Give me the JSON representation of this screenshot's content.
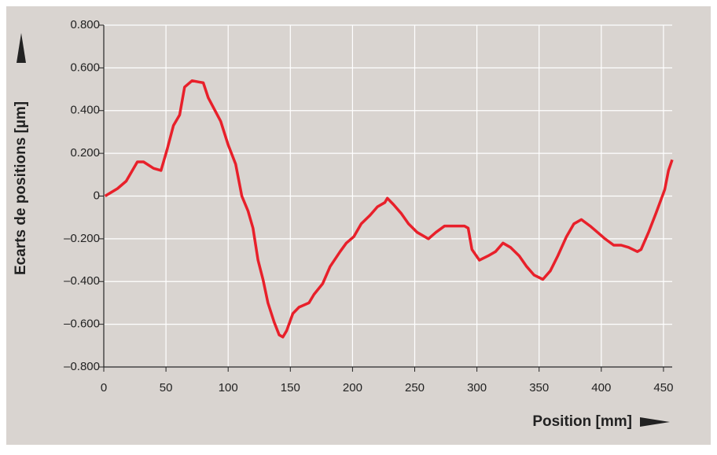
{
  "chart_data": {
    "type": "line",
    "xlabel": "Position [mm]",
    "ylabel": "Ecarts de positions [µm]",
    "color": "#e8202a",
    "grid": true,
    "xlim": [
      0,
      457
    ],
    "ylim": [
      -0.8,
      0.8
    ],
    "xticks": [
      0,
      50,
      100,
      150,
      200,
      250,
      300,
      350,
      400,
      450
    ],
    "yticks": [
      {
        "value": -0.8,
        "label": "–0.800"
      },
      {
        "value": -0.6,
        "label": "–0.600"
      },
      {
        "value": -0.4,
        "label": "–0.400"
      },
      {
        "value": -0.2,
        "label": "–0.200"
      },
      0,
      {
        "value": 0.2,
        "label": "0.200"
      },
      {
        "value": 0.4,
        "label": "0.400"
      },
      {
        "value": 0.6,
        "label": "0.600"
      },
      {
        "value": 0.8,
        "label": "0.800"
      }
    ],
    "x": [
      1,
      11,
      18,
      27,
      32,
      40,
      46,
      51,
      56,
      61,
      65,
      71,
      80,
      84,
      94,
      100,
      106,
      111,
      116,
      120,
      124,
      128,
      132,
      137,
      141,
      144,
      147,
      152,
      157,
      165,
      169,
      176,
      182,
      190,
      195,
      201,
      207,
      214,
      220,
      226,
      228,
      233,
      239,
      245,
      252,
      261,
      267,
      274,
      280,
      290,
      293,
      296,
      302,
      309,
      315,
      321,
      327,
      334,
      340,
      346,
      353,
      359,
      365,
      372,
      378,
      384,
      391,
      397,
      403,
      410,
      416,
      422,
      429,
      432,
      438,
      444,
      451,
      454,
      457
    ],
    "values": [
      0.0,
      0.035,
      0.07,
      0.16,
      0.16,
      0.13,
      0.12,
      0.22,
      0.33,
      0.38,
      0.51,
      0.54,
      0.53,
      0.46,
      0.35,
      0.24,
      0.15,
      0.0,
      -0.07,
      -0.15,
      -0.3,
      -0.39,
      -0.5,
      -0.59,
      -0.65,
      -0.66,
      -0.63,
      -0.55,
      -0.52,
      -0.5,
      -0.46,
      -0.41,
      -0.33,
      -0.26,
      -0.22,
      -0.19,
      -0.13,
      -0.09,
      -0.05,
      -0.03,
      -0.01,
      -0.04,
      -0.08,
      -0.13,
      -0.17,
      -0.2,
      -0.17,
      -0.14,
      -0.14,
      -0.14,
      -0.15,
      -0.25,
      -0.3,
      -0.28,
      -0.26,
      -0.22,
      -0.24,
      -0.28,
      -0.33,
      -0.37,
      -0.39,
      -0.35,
      -0.28,
      -0.19,
      -0.13,
      -0.11,
      -0.14,
      -0.17,
      -0.2,
      -0.23,
      -0.23,
      -0.24,
      -0.26,
      -0.25,
      -0.17,
      -0.08,
      0.03,
      0.12,
      0.17
    ]
  }
}
